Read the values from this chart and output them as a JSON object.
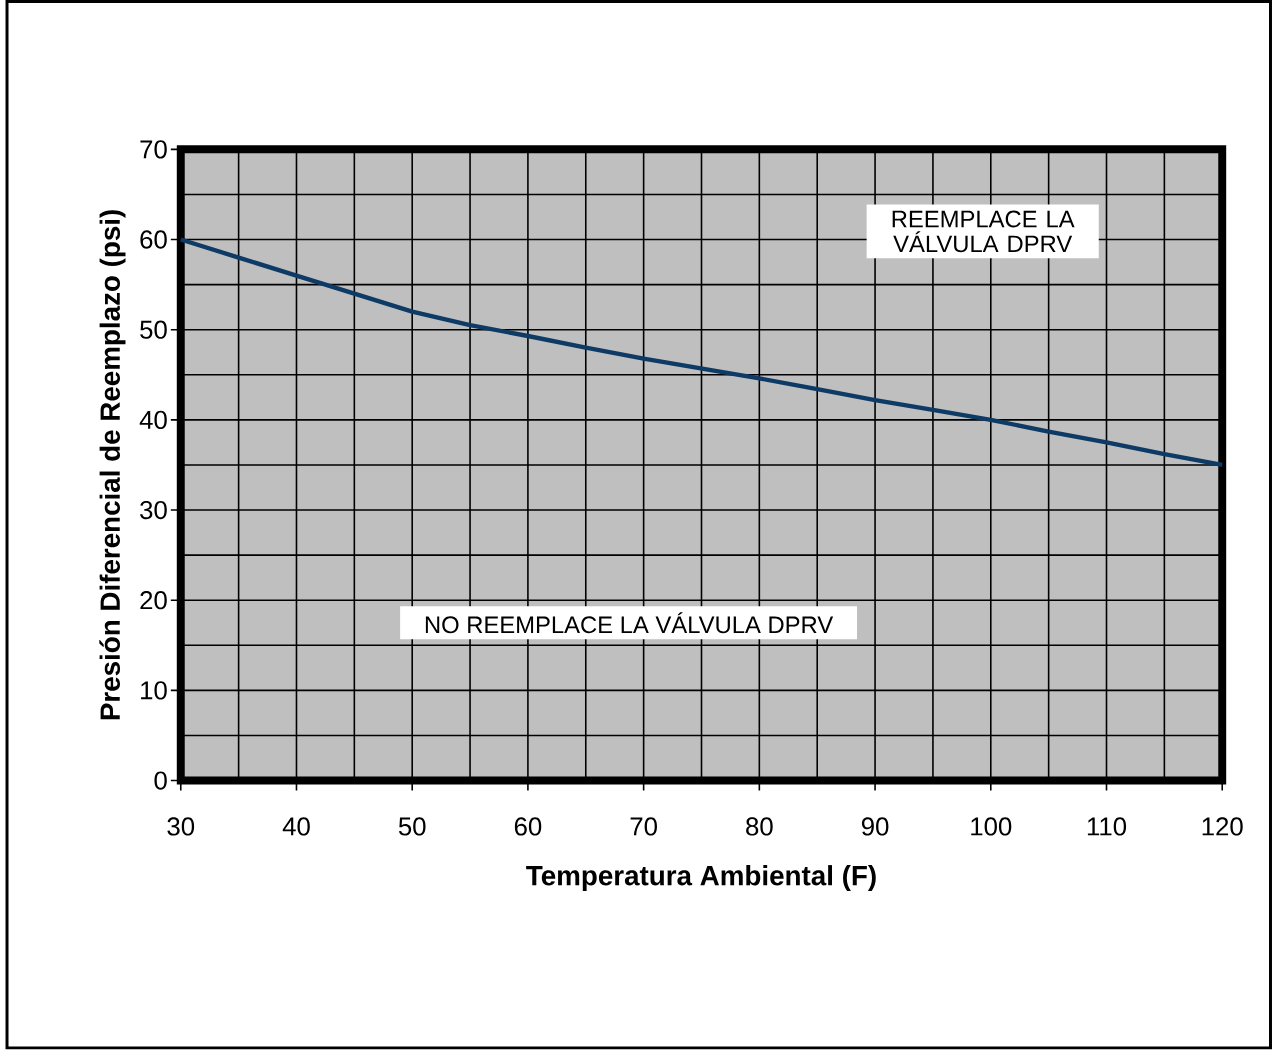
{
  "chart_data": {
    "type": "line",
    "xlabel": "Temperatura Ambiental (F)",
    "ylabel": "Presión Diferencial de Reemplazo (psi)",
    "x": [
      30,
      35,
      40,
      45,
      50,
      55,
      60,
      65,
      70,
      75,
      80,
      85,
      90,
      95,
      100,
      105,
      110,
      115,
      120
    ],
    "series": [
      {
        "color": "#0e3a66",
        "values": [
          60,
          58,
          56,
          54,
          52,
          50.5,
          49.3,
          48,
          46.8,
          45.7,
          44.6,
          43.4,
          42.2,
          41.1,
          40,
          38.7,
          37.5,
          36.2,
          35
        ]
      }
    ],
    "xlim": [
      30,
      120
    ],
    "ylim": [
      0,
      70
    ],
    "xticks": [
      30,
      40,
      50,
      60,
      70,
      80,
      90,
      100,
      110,
      120
    ],
    "yticks": [
      0,
      10,
      20,
      30,
      40,
      50,
      60,
      70
    ],
    "grid": true,
    "marker": "none",
    "line_style": "solid",
    "annotations": [
      "REEMPLACE LA VÁLVULA DPRV",
      "NO REEMPLACE LA VÁLVULA DPRV"
    ]
  }
}
